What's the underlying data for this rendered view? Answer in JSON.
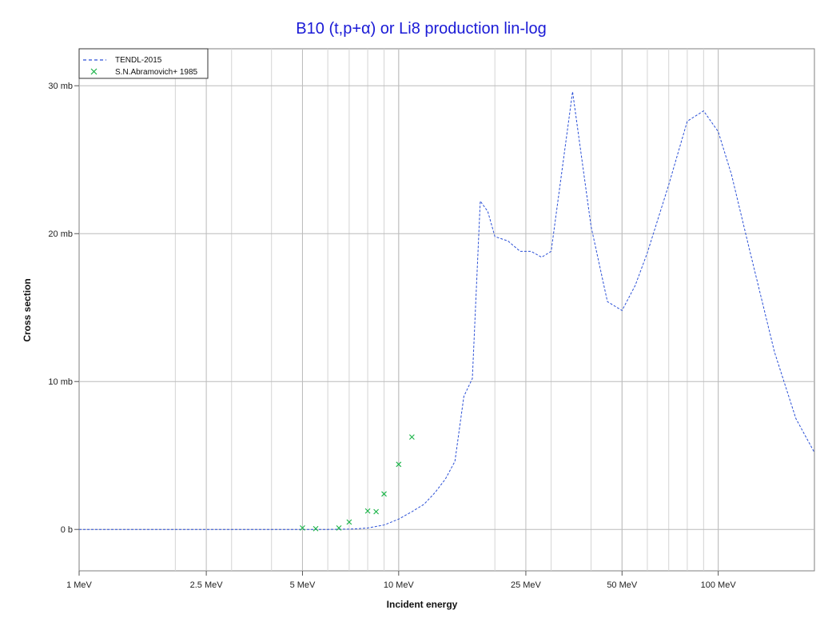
{
  "chart_data": {
    "type": "line",
    "title": "B10 (t,p+α) or Li8 production lin-log",
    "xlabel": "Incident energy",
    "ylabel": "Cross section",
    "x_scale": "log",
    "x_unit": "MeV",
    "y_unit": "mb",
    "xlim": [
      1,
      200
    ],
    "ylim": [
      -2.8,
      32.5
    ],
    "grid": true,
    "legend_position": "top-left",
    "x_ticks": [
      {
        "value": 1,
        "label": "1 MeV"
      },
      {
        "value": 2.5,
        "label": "2.5 MeV"
      },
      {
        "value": 5,
        "label": "5 MeV"
      },
      {
        "value": 10,
        "label": "10 MeV"
      },
      {
        "value": 25,
        "label": "25 MeV"
      },
      {
        "value": 50,
        "label": "50 MeV"
      },
      {
        "value": 100,
        "label": "100 MeV"
      }
    ],
    "y_ticks": [
      {
        "value": 0,
        "label": "0 b"
      },
      {
        "value": 10,
        "label": "10 mb"
      },
      {
        "value": 20,
        "label": "20 mb"
      },
      {
        "value": 30,
        "label": "30 mb"
      }
    ],
    "series": [
      {
        "name": "TENDL-2015",
        "style": "dashed-line",
        "color": "#2a4fd6",
        "points": [
          [
            1,
            0
          ],
          [
            2,
            0
          ],
          [
            4,
            0
          ],
          [
            6,
            0
          ],
          [
            7,
            0.02
          ],
          [
            7.5,
            0.05
          ],
          [
            8,
            0.1
          ],
          [
            9,
            0.3
          ],
          [
            10,
            0.7
          ],
          [
            11,
            1.2
          ],
          [
            12,
            1.7
          ],
          [
            13,
            2.5
          ],
          [
            14,
            3.4
          ],
          [
            15,
            4.6
          ],
          [
            16,
            9.0
          ],
          [
            17,
            10.2
          ],
          [
            18,
            22.2
          ],
          [
            19,
            21.5
          ],
          [
            20,
            19.8
          ],
          [
            22,
            19.5
          ],
          [
            24,
            18.8
          ],
          [
            26,
            18.8
          ],
          [
            28,
            18.4
          ],
          [
            30,
            18.8
          ],
          [
            35,
            29.6
          ],
          [
            40,
            20.5
          ],
          [
            45,
            15.4
          ],
          [
            50,
            14.8
          ],
          [
            55,
            16.5
          ],
          [
            60,
            18.7
          ],
          [
            70,
            23.3
          ],
          [
            80,
            27.6
          ],
          [
            90,
            28.3
          ],
          [
            100,
            26.9
          ],
          [
            110,
            24.0
          ],
          [
            125,
            19.0
          ],
          [
            150,
            12.0
          ],
          [
            175,
            7.5
          ],
          [
            200,
            5.2
          ]
        ]
      },
      {
        "name": "S.N.Abramovich+ 1985",
        "style": "cross-markers",
        "color": "#19b347",
        "points": [
          [
            5.0,
            0.1
          ],
          [
            5.5,
            0.05
          ],
          [
            6.5,
            0.1
          ],
          [
            7.0,
            0.5
          ],
          [
            8.0,
            1.25
          ],
          [
            8.5,
            1.2
          ],
          [
            9.0,
            2.4
          ],
          [
            10.0,
            4.4
          ],
          [
            11.0,
            6.25
          ]
        ]
      }
    ]
  }
}
